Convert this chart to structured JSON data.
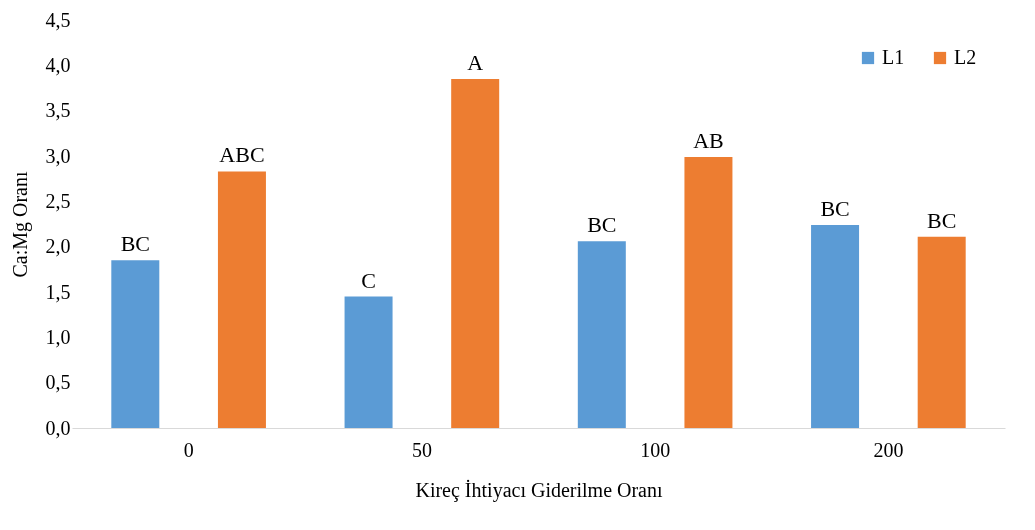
{
  "chart_data": {
    "type": "bar",
    "xlabel": "Kireç İhtiyacı Giderilme Oranı",
    "ylabel": "Ca:Mg Oranı",
    "categories": [
      "0",
      "50",
      "100",
      "200"
    ],
    "series": [
      {
        "name": "L1",
        "color": "#5b9bd5",
        "values": [
          1.85,
          1.45,
          2.06,
          2.24
        ],
        "value_labels": [
          "BC",
          "C",
          "BC",
          "BC"
        ]
      },
      {
        "name": "L2",
        "color": "#ed7d31",
        "values": [
          2.83,
          3.85,
          2.99,
          2.11
        ],
        "value_labels": [
          "ABC",
          "A",
          "AB",
          "BC"
        ]
      }
    ],
    "ylim": [
      0,
      4.5
    ],
    "yticks": [
      {
        "value": 0,
        "label": "0,0"
      },
      {
        "value": 0.5,
        "label": "0,5"
      },
      {
        "value": 1,
        "label": "1,0"
      },
      {
        "value": 1.5,
        "label": "1,5"
      },
      {
        "value": 2,
        "label": "2,0"
      },
      {
        "value": 2.5,
        "label": "2,5"
      },
      {
        "value": 3,
        "label": "3,0"
      },
      {
        "value": 3.5,
        "label": "3,5"
      },
      {
        "value": 4,
        "label": "4,0"
      },
      {
        "value": 4.5,
        "label": "4,5"
      }
    ],
    "grid": false,
    "legend": "top right"
  }
}
